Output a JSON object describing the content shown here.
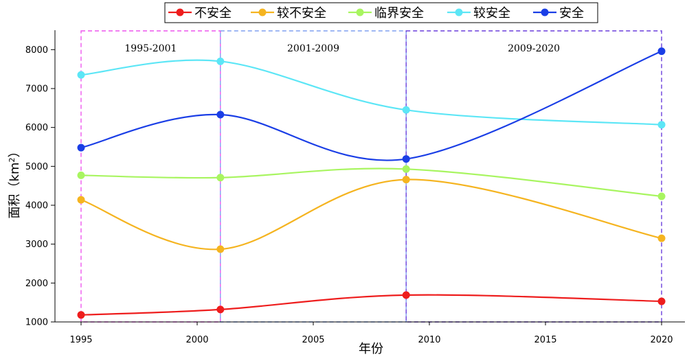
{
  "colors": {
    "不安全": "#ee1d1d",
    "较不安全": "#f5b420",
    "临界安全": "#a8f560",
    "较安全": "#5ce6f6",
    "安全": "#1a3ee6"
  },
  "chart_data": {
    "type": "line",
    "x": [
      1995,
      2001,
      2009,
      2020
    ],
    "series": [
      {
        "name": "不安全",
        "values": [
          1180,
          1320,
          1690,
          1530
        ]
      },
      {
        "name": "较不安全",
        "values": [
          4140,
          2870,
          4660,
          3150
        ]
      },
      {
        "name": "临界安全",
        "values": [
          4770,
          4710,
          4930,
          4230
        ]
      },
      {
        "name": "较安全",
        "values": [
          7350,
          7700,
          6450,
          6070
        ]
      },
      {
        "name": "安全",
        "values": [
          5480,
          6330,
          5190,
          7960
        ]
      }
    ],
    "xlabel": "年份",
    "ylabel_main": "面积（km",
    "ylabel_sup": "2",
    "ylabel_close": "）",
    "xlim": [
      1995,
      2020
    ],
    "ylim": [
      1000,
      8500
    ],
    "xticks": [
      1995,
      2000,
      2005,
      2010,
      2015,
      2020
    ],
    "yticks": [
      1000,
      2000,
      3000,
      4000,
      5000,
      6000,
      7000,
      8000
    ],
    "legend_position": "top",
    "periods": [
      {
        "label": "1995-2001",
        "start": 1995,
        "end": 2001,
        "color": "#ee55ee"
      },
      {
        "label": "2001-2009",
        "start": 2001,
        "end": 2009,
        "color": "#7f9ff0"
      },
      {
        "label": "2009-2020",
        "start": 2009,
        "end": 2020,
        "color": "#6a3ddc"
      }
    ]
  }
}
